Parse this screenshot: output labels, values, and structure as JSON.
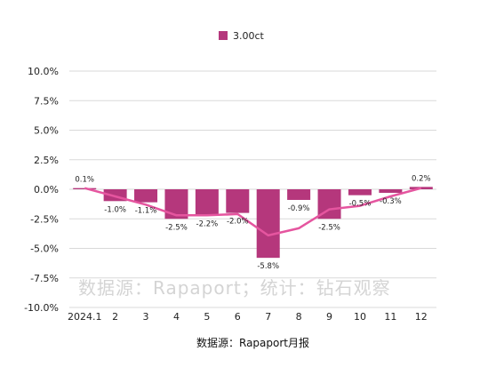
{
  "chart_data": {
    "type": "bar",
    "legend_position": "top-center",
    "grid": true,
    "categories": [
      "2024.1",
      "2",
      "3",
      "4",
      "5",
      "6",
      "7",
      "8",
      "9",
      "10",
      "11",
      "12"
    ],
    "series": [
      {
        "name": "3.00ct",
        "color": "#b5377c",
        "values": [
          0.1,
          -1.0,
          -1.1,
          -2.5,
          -2.2,
          -2.0,
          -5.8,
          -0.9,
          -2.5,
          -0.5,
          -0.3,
          0.2
        ],
        "labels": [
          "0.1%",
          "-1.0%",
          "-1.1%",
          "-2.5%",
          "-2.2%",
          "-2.0%",
          "-5.8%",
          "-0.9%",
          "-2.5%",
          "-0.5%",
          "-0.3%",
          "0.2%"
        ]
      }
    ],
    "trend_line": {
      "color": "#e5559f",
      "values": [
        0.1,
        -0.6,
        -1.3,
        -2.2,
        -2.2,
        -2.1,
        -3.9,
        -3.3,
        -1.7,
        -1.4,
        -0.6,
        0.1
      ]
    },
    "ylim": [
      -10,
      10
    ],
    "yticks": [
      10,
      7.5,
      5,
      2.5,
      0,
      -2.5,
      -5,
      -7.5,
      -10
    ],
    "ytick_labels": [
      "10.0%",
      "7.5%",
      "5.0%",
      "2.5%",
      "0.0%",
      "-2.5%",
      "-5.0%",
      "-7.5%",
      "-10.0%"
    ]
  },
  "watermark": "数据源：Rapaport；统计：钻石观察",
  "source_note": "数据源：Rapaport月报"
}
